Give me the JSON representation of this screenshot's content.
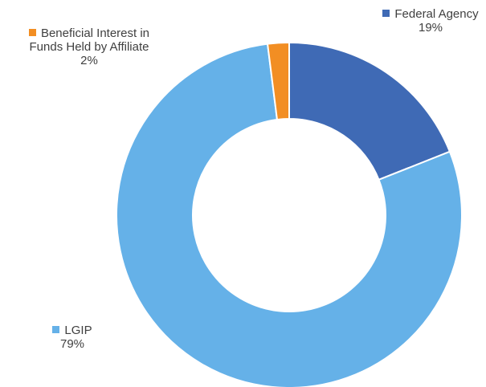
{
  "chart_data": {
    "type": "pie",
    "donut": true,
    "slices": [
      {
        "label": "Federal Agency",
        "value": 19,
        "value_text": "19%",
        "color": "#3F6AB5"
      },
      {
        "label": "LGIP",
        "value": 79,
        "value_text": "79%",
        "color": "#65B1E8"
      },
      {
        "label_lines": [
          "Beneficial Interest in",
          "Funds Held by Affiliate"
        ],
        "value": 2,
        "value_text": "2%",
        "color": "#F28E23"
      }
    ]
  }
}
